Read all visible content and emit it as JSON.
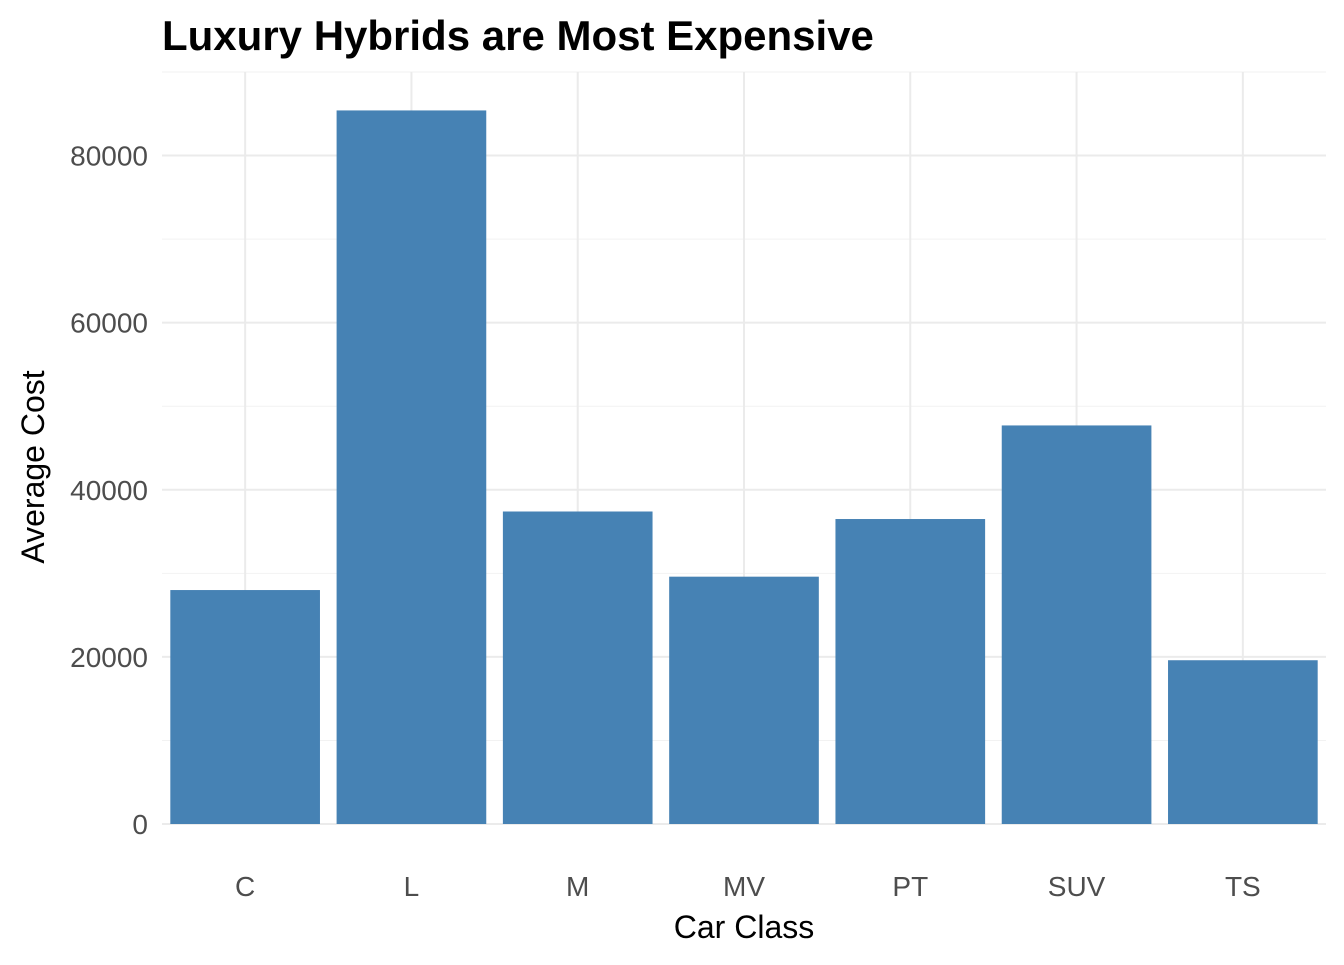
{
  "chart_data": {
    "type": "bar",
    "title": "Luxury Hybrids are Most Expensive",
    "xlabel": "Car Class",
    "ylabel": "Average Cost",
    "categories": [
      "C",
      "L",
      "M",
      "MV",
      "PT",
      "SUV",
      "TS"
    ],
    "values": [
      28000,
      85400,
      37400,
      29600,
      36500,
      47700,
      19600
    ],
    "ylim": [
      0,
      90000
    ],
    "yticks": [
      0,
      20000,
      40000,
      60000,
      80000
    ],
    "ytick_labels": [
      "0",
      "20000",
      "40000",
      "60000",
      "80000"
    ],
    "grid": true,
    "legend": "none",
    "colors": {
      "bar": "#4682B4",
      "grid_major": "#ebebeb",
      "grid_minor": "#f2f2f2",
      "tick_text": "#4d4d4d",
      "title_text": "#000000"
    }
  }
}
